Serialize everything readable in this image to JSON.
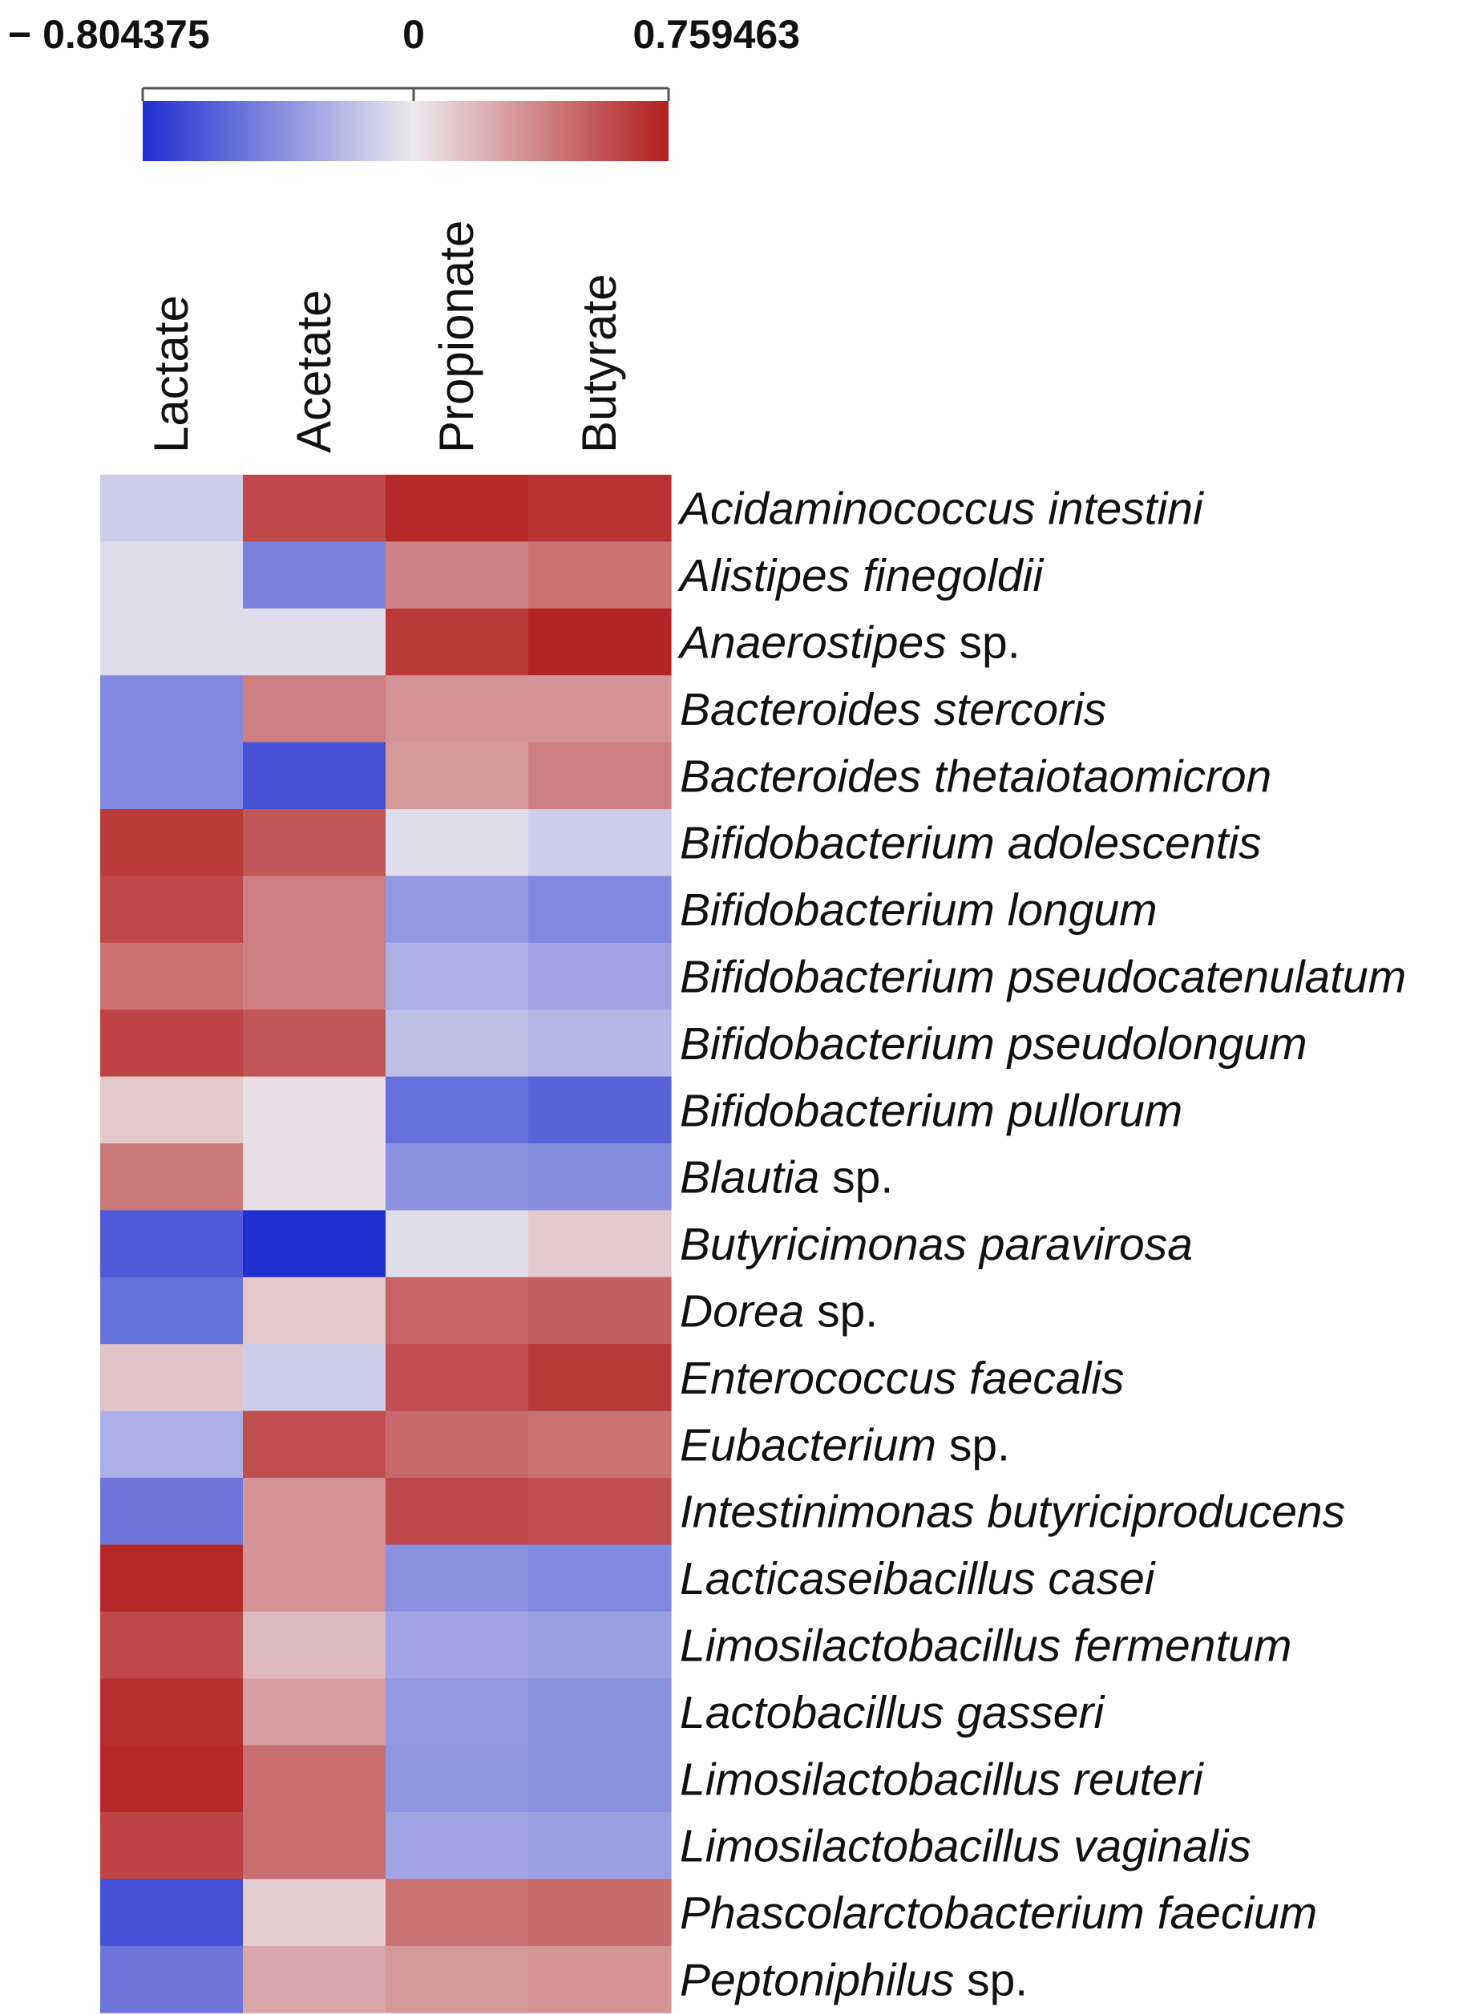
{
  "chart_data": {
    "type": "heatmap",
    "title": "",
    "color_scale": {
      "min": -0.804375,
      "mid": 0,
      "max": 0.759463,
      "tick_labels": [
        "− 0.804375",
        "0",
        "0.759463"
      ],
      "low_color": "#1f2fd0",
      "mid_color": "#ece9ee",
      "high_color": "#b31e1e"
    },
    "columns": [
      "Lactate",
      "Acetate",
      "Propionate",
      "Butyrate"
    ],
    "rows": [
      {
        "genus": "Acidaminococcus",
        "epithet": "intestini",
        "values": [
          -0.12,
          0.6,
          0.72,
          0.68
        ]
      },
      {
        "genus": "Alistipes",
        "epithet": "finegoldii",
        "values": [
          -0.05,
          -0.45,
          0.38,
          0.45
        ]
      },
      {
        "genus": "Anaerostipes",
        "suffix": "sp.",
        "values": [
          -0.05,
          -0.05,
          0.66,
          0.74
        ]
      },
      {
        "genus": "Bacteroides",
        "epithet": "stercoris",
        "values": [
          -0.42,
          0.4,
          0.32,
          0.32
        ]
      },
      {
        "genus": "Bacteroides",
        "epithet": "thetaiotaomicron",
        "values": [
          -0.42,
          -0.65,
          0.3,
          0.4
        ]
      },
      {
        "genus": "Bifidobacterium",
        "epithet": "adolescentis",
        "values": [
          0.66,
          0.55,
          -0.05,
          -0.12
        ]
      },
      {
        "genus": "Bifidobacterium",
        "epithet": "longum",
        "values": [
          0.6,
          0.4,
          -0.35,
          -0.42
        ]
      },
      {
        "genus": "Bifidobacterium",
        "epithet": "pseudocatenulatum",
        "values": [
          0.45,
          0.4,
          -0.25,
          -0.3
        ]
      },
      {
        "genus": "Bifidobacterium",
        "epithet": "pseudolongum",
        "values": [
          0.62,
          0.55,
          -0.18,
          -0.22
        ]
      },
      {
        "genus": "Bifidobacterium",
        "epithet": "pullorum",
        "values": [
          0.12,
          0.04,
          -0.52,
          -0.58
        ]
      },
      {
        "genus": "Blautia",
        "suffix": "sp.",
        "values": [
          0.42,
          0.04,
          -0.38,
          -0.4
        ]
      },
      {
        "genus": "Butyricimonas",
        "epithet": "paravirosa",
        "values": [
          -0.62,
          -0.8,
          -0.05,
          0.12
        ]
      },
      {
        "genus": "Dorea",
        "suffix": "sp.",
        "values": [
          -0.52,
          0.12,
          0.5,
          0.52
        ]
      },
      {
        "genus": "Enterococcus",
        "epithet": "faecalis",
        "values": [
          0.14,
          -0.12,
          0.58,
          0.66
        ]
      },
      {
        "genus": "Eubacterium",
        "suffix": "sp.",
        "values": [
          -0.25,
          0.58,
          0.48,
          0.45
        ]
      },
      {
        "genus": "Intestinimonas",
        "epithet": "butyriciproducens",
        "values": [
          -0.5,
          0.32,
          0.6,
          0.58
        ]
      },
      {
        "genus": "Lacticaseibacillus",
        "epithet": "casei",
        "values": [
          0.72,
          0.32,
          -0.38,
          -0.42
        ]
      },
      {
        "genus": "Limosilactobacillus",
        "epithet": "fermentum",
        "values": [
          0.6,
          0.18,
          -0.3,
          -0.32
        ]
      },
      {
        "genus": "Lactobacillus",
        "epithet": "gasseri",
        "values": [
          0.7,
          0.28,
          -0.35,
          -0.38
        ]
      },
      {
        "genus": "Limosilactobacillus",
        "epithet": "reuteri",
        "values": [
          0.72,
          0.46,
          -0.36,
          -0.38
        ]
      },
      {
        "genus": "Limosilactobacillus",
        "epithet": "vaginalis",
        "values": [
          0.62,
          0.46,
          -0.3,
          -0.32
        ]
      },
      {
        "genus": "Phascolarctobacterium",
        "epithet": "faecium",
        "values": [
          -0.66,
          0.1,
          0.45,
          0.48
        ]
      },
      {
        "genus": "Peptoniphilus",
        "suffix": "sp.",
        "values": [
          -0.5,
          0.25,
          0.3,
          0.32
        ]
      }
    ]
  }
}
